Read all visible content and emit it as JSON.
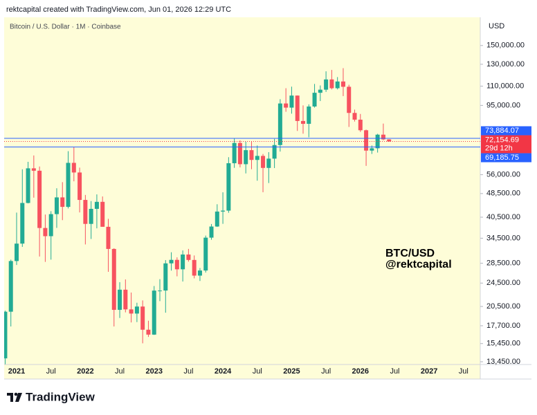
{
  "header": "rektcapital created with TradingView.com, Jun 01, 2026 12:29 UTC",
  "chart_data": {
    "type": "candlestick",
    "title": "Bitcoin / U.S. Dollar · 1M · Coinbase",
    "y_axis_unit": "USD",
    "log_scale": true,
    "up_color": "#22ab94",
    "down_color": "#f7525f",
    "categories": [
      null,
      null,
      "2021",
      null,
      null,
      null,
      null,
      null,
      "Jul",
      null,
      null,
      null,
      null,
      null,
      "2022",
      null,
      null,
      null,
      null,
      null,
      "Jul",
      null,
      null,
      null,
      null,
      null,
      "2023",
      null,
      null,
      null,
      null,
      null,
      "Jul",
      null,
      null,
      null,
      null,
      null,
      "2024",
      null,
      null,
      null,
      null,
      null,
      "Jul",
      null,
      null,
      null,
      null,
      null,
      "2025",
      null,
      null,
      null,
      null,
      null,
      "Jul",
      null,
      null,
      null,
      null,
      null,
      "2026",
      null,
      null,
      null,
      null,
      null,
      "Jul",
      null,
      null,
      null,
      null,
      null,
      "2027",
      null,
      null,
      null,
      null,
      null,
      "Jul"
    ],
    "open": [
      13800,
      19700,
      28990,
      33110,
      45140,
      58790,
      57720,
      37300,
      35040,
      41460,
      47100,
      43820,
      61300,
      56950,
      46200,
      38480,
      43160,
      45530,
      37640,
      31790,
      19980,
      23300,
      20050,
      19420,
      20490,
      17170,
      16540,
      23140,
      23150,
      28480,
      29250,
      27220,
      30470,
      29230,
      25940,
      26970,
      34650,
      37720,
      42280,
      42580,
      61130,
      71330,
      60670,
      67530,
      62680,
      64630,
      58970,
      63300,
      70200,
      96400,
      93400,
      102400,
      84350,
      82550,
      94200,
      104600,
      107100,
      115800,
      108300,
      114000,
      109500,
      89700,
      85200,
      78600,
      67300,
      68500,
      76000,
      73300,
      null,
      null,
      null,
      null,
      null,
      null,
      null,
      null,
      null,
      null,
      null,
      null,
      null
    ],
    "high": [
      19860,
      29300,
      41950,
      58350,
      61780,
      64850,
      59590,
      41330,
      42400,
      50500,
      52900,
      67000,
      69000,
      59100,
      47990,
      45800,
      48190,
      47440,
      40000,
      31960,
      24670,
      25200,
      22800,
      21090,
      21470,
      18390,
      23960,
      25250,
      29200,
      31000,
      29820,
      31430,
      31800,
      30250,
      27480,
      35200,
      38450,
      44700,
      48970,
      64000,
      73780,
      72780,
      71980,
      71950,
      70000,
      65600,
      66500,
      73600,
      99600,
      108300,
      109600,
      102500,
      95000,
      95750,
      111900,
      110600,
      123200,
      124500,
      117900,
      126200,
      111200,
      92000,
      89000,
      79000,
      70000,
      76500,
      82700,
      73400,
      null,
      null,
      null,
      null,
      null,
      null,
      null,
      null,
      null,
      null,
      null,
      null,
      null
    ],
    "low": [
      13200,
      17600,
      28130,
      32300,
      45000,
      47000,
      30000,
      28800,
      29300,
      37330,
      39600,
      43300,
      53250,
      42000,
      32900,
      34300,
      37200,
      37700,
      26700,
      17600,
      18780,
      19600,
      18150,
      18200,
      15480,
      16250,
      16500,
      21350,
      19550,
      26950,
      25800,
      24800,
      28860,
      25400,
      24900,
      26550,
      34100,
      37600,
      38500,
      41880,
      59000,
      59200,
      56550,
      58400,
      53500,
      49000,
      52550,
      58900,
      66800,
      90500,
      89200,
      78200,
      76600,
      74500,
      93400,
      98200,
      105300,
      107300,
      107300,
      102000,
      80600,
      84000,
      77600,
      59900,
      65600,
      66300,
      72800,
      72000,
      null,
      null,
      null,
      null,
      null,
      null,
      null,
      null,
      null,
      null,
      null,
      null,
      null
    ],
    "close": [
      19700,
      28990,
      33110,
      45140,
      58790,
      57720,
      37300,
      35040,
      41460,
      47100,
      43820,
      61300,
      56950,
      46200,
      38480,
      43160,
      45530,
      37640,
      31790,
      19980,
      23300,
      20050,
      19420,
      20490,
      17170,
      16540,
      23140,
      23150,
      28480,
      29250,
      27220,
      30470,
      29230,
      25940,
      26970,
      34650,
      37720,
      42280,
      42580,
      61130,
      71330,
      60670,
      67530,
      62680,
      64630,
      58970,
      63300,
      70200,
      96400,
      93400,
      102400,
      84350,
      82550,
      94200,
      104600,
      107100,
      115800,
      108300,
      114000,
      109500,
      89700,
      85200,
      78600,
      67300,
      68500,
      76000,
      73300,
      72154.69,
      null,
      null,
      null,
      null,
      null,
      null,
      null,
      null,
      null,
      null,
      null,
      null,
      null
    ],
    "ylim": [
      13450,
      186000
    ],
    "yticks": [
      {
        "value": 150000,
        "label": "150,000.00"
      },
      {
        "value": 130000,
        "label": "130,000.00"
      },
      {
        "value": 110000,
        "label": "110,000.00"
      },
      {
        "value": 95000,
        "label": "95,000.00"
      },
      {
        "value": 56000,
        "label": "56,000.00"
      },
      {
        "value": 48500,
        "label": "48,500.00"
      },
      {
        "value": 40500,
        "label": "40,500.00"
      },
      {
        "value": 34500,
        "label": "34,500.00"
      },
      {
        "value": 28500,
        "label": "28,500.00"
      },
      {
        "value": 24500,
        "label": "24,500.00"
      },
      {
        "value": 20500,
        "label": "20,500.00"
      },
      {
        "value": 17700,
        "label": "17,700.00"
      },
      {
        "value": 15450,
        "label": "15,450.00"
      },
      {
        "value": 13450,
        "label": "13,450.00"
      }
    ],
    "price_lines": [
      {
        "value": 73884.07,
        "label": "73,884.07",
        "color": "#2962ff"
      },
      {
        "value": 69185.75,
        "label": "69,185.75",
        "color": "#2962ff"
      }
    ],
    "last_price": {
      "value": 72154.69,
      "label": "72,154.69",
      "countdown": "29d 12h",
      "color": "#f23645"
    },
    "annotation": [
      "BTC/USD",
      "@rektcapital"
    ]
  },
  "footer": {
    "logo_text": "TradingView"
  }
}
